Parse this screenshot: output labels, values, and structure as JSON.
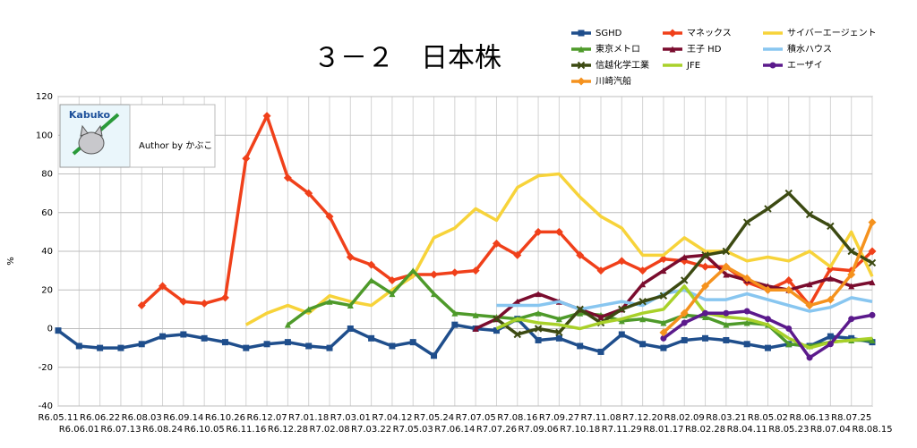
{
  "chart_data": {
    "type": "line",
    "title": "３－２　日本株",
    "y_label": "%",
    "annotations": [
      "Kabuko",
      "Author by かぶこ"
    ],
    "categories": [
      "R6.05.11",
      "R6.06.01",
      "R6.06.22",
      "R6.07.13",
      "R6.08.03",
      "R6.08.24",
      "R6.09.14",
      "R6.10.05",
      "R6.10.26",
      "R6.11.16",
      "R6.12.07",
      "R6.12.28",
      "R7.01.18",
      "R7.02.08",
      "R7.03.01",
      "R7.03.22",
      "R7.04.12",
      "R7.05.03",
      "R7.05.24",
      "R7.06.14",
      "R7.07.05",
      "R7.07.26",
      "R7.08.16",
      "R7.09.06",
      "R7.09.27",
      "R7.10.18",
      "R7.11.08",
      "R7.11.29",
      "R7.12.20",
      "R8.01.17",
      "R8.02.09",
      "R8.02.28",
      "R8.03.21",
      "R8.04.11",
      "R8.05.02",
      "R8.05.23",
      "R8.06.13",
      "R8.07.04",
      "R8.07.25",
      "R8.08.15"
    ],
    "ylim": [
      -40,
      120
    ],
    "yticks": [
      -40,
      -20,
      0,
      20,
      40,
      60,
      80,
      100,
      120
    ],
    "grid": true,
    "series": [
      {
        "name": "SGHD",
        "color": "#1f4e8c",
        "marker": "square",
        "values": [
          -1,
          -9,
          -10,
          -10,
          -8,
          -4,
          -3,
          -5,
          -7,
          -10,
          -8,
          -7,
          -9,
          -10,
          0,
          -5,
          -9,
          -7,
          -14,
          2,
          0,
          -1,
          5,
          -6,
          -5,
          -9,
          -12,
          -3,
          -8,
          -10,
          -6,
          -5,
          -6,
          -8,
          -10,
          -8,
          -9,
          -4,
          -5,
          -7
        ]
      },
      {
        "name": "マネックス",
        "color": "#f0401a",
        "marker": "diamond",
        "values": [
          null,
          null,
          null,
          null,
          12,
          22,
          14,
          13,
          16,
          88,
          110,
          78,
          70,
          58,
          37,
          33,
          25,
          28,
          28,
          29,
          30,
          44,
          38,
          50,
          50,
          38,
          30,
          35,
          30,
          36,
          35,
          32,
          32,
          24,
          20,
          25,
          12,
          31,
          30,
          40
        ]
      },
      {
        "name": "サイバーエージェント",
        "color": "#f7d33a",
        "marker": "none",
        "values": [
          null,
          null,
          null,
          null,
          null,
          null,
          null,
          null,
          null,
          2,
          8,
          12,
          8,
          17,
          14,
          12,
          20,
          27,
          47,
          52,
          62,
          56,
          73,
          79,
          80,
          68,
          58,
          52,
          38,
          38,
          47,
          40,
          40,
          35,
          37,
          35,
          40,
          32,
          50,
          27
        ]
      },
      {
        "name": "東京メトロ",
        "color": "#4e9a2a",
        "marker": "triangle",
        "values": [
          null,
          null,
          null,
          null,
          null,
          null,
          null,
          null,
          null,
          null,
          null,
          2,
          10,
          14,
          12,
          25,
          18,
          30,
          18,
          8,
          7,
          6,
          5,
          8,
          5,
          8,
          7,
          4,
          5,
          3,
          7,
          6,
          2,
          3,
          2,
          -8,
          -9,
          -7,
          -6,
          -6
        ]
      },
      {
        "name": "王子 HD",
        "color": "#7a0c2e",
        "marker": "triangle",
        "values": [
          null,
          null,
          null,
          null,
          null,
          null,
          null,
          null,
          null,
          null,
          null,
          null,
          null,
          null,
          null,
          null,
          null,
          null,
          null,
          null,
          0,
          5,
          14,
          18,
          14,
          10,
          6,
          10,
          23,
          30,
          37,
          38,
          28,
          25,
          22,
          20,
          23,
          26,
          22,
          24
        ]
      },
      {
        "name": "積水ハウス",
        "color": "#88c6f0",
        "marker": "none",
        "values": [
          null,
          null,
          null,
          null,
          null,
          null,
          null,
          null,
          null,
          null,
          null,
          null,
          null,
          null,
          null,
          null,
          null,
          null,
          null,
          null,
          null,
          12,
          12,
          12,
          14,
          10,
          12,
          14,
          12,
          18,
          20,
          15,
          15,
          18,
          15,
          12,
          9,
          11,
          16,
          14
        ]
      },
      {
        "name": "信越化学工業",
        "color": "#3c4a12",
        "marker": "x",
        "values": [
          null,
          null,
          null,
          null,
          null,
          null,
          null,
          null,
          null,
          null,
          null,
          null,
          null,
          null,
          null,
          null,
          null,
          null,
          null,
          null,
          null,
          5,
          -3,
          0,
          -2,
          10,
          3,
          10,
          14,
          17,
          25,
          38,
          40,
          55,
          62,
          70,
          59,
          53,
          40,
          34
        ]
      },
      {
        "name": "JFE",
        "color": "#a9d12a",
        "marker": "none",
        "values": [
          null,
          null,
          null,
          null,
          null,
          null,
          null,
          null,
          null,
          null,
          null,
          null,
          null,
          null,
          null,
          null,
          null,
          null,
          null,
          null,
          null,
          0,
          5,
          3,
          2,
          0,
          3,
          5,
          8,
          10,
          22,
          8,
          6,
          5,
          2,
          -5,
          -10,
          -7,
          -6,
          -5
        ]
      },
      {
        "name": "エーザイ",
        "color": "#5b1a8c",
        "marker": "circle",
        "values": [
          null,
          null,
          null,
          null,
          null,
          null,
          null,
          null,
          null,
          null,
          null,
          null,
          null,
          null,
          null,
          null,
          null,
          null,
          null,
          null,
          null,
          null,
          null,
          null,
          null,
          null,
          null,
          null,
          null,
          -5,
          3,
          8,
          8,
          9,
          5,
          0,
          -15,
          -8,
          5,
          7
        ]
      },
      {
        "name": "川崎汽船",
        "color": "#f5921e",
        "marker": "diamond",
        "values": [
          null,
          null,
          null,
          null,
          null,
          null,
          null,
          null,
          null,
          null,
          null,
          null,
          null,
          null,
          null,
          null,
          null,
          null,
          null,
          null,
          null,
          null,
          null,
          null,
          null,
          null,
          null,
          null,
          null,
          -2,
          8,
          22,
          32,
          26,
          20,
          20,
          12,
          15,
          28,
          55
        ]
      }
    ]
  }
}
